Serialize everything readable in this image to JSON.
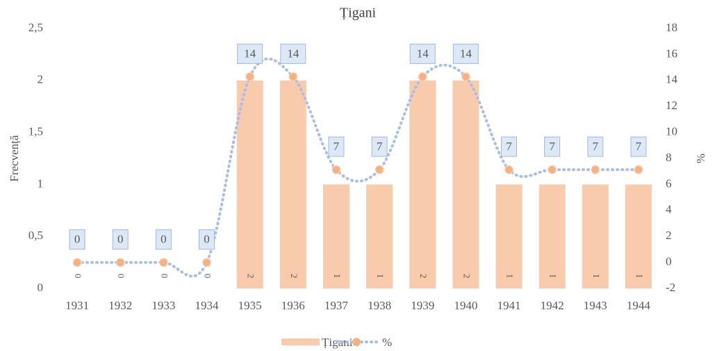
{
  "chart_data": {
    "type": "bar-line",
    "title": "Țigani",
    "categories": [
      "1931",
      "1932",
      "1933",
      "1934",
      "1935",
      "1936",
      "1937",
      "1938",
      "1939",
      "1940",
      "1941",
      "1942",
      "1943",
      "1944"
    ],
    "series": [
      {
        "name": "Țigani",
        "type": "bar",
        "color": "#f8cbad",
        "axis": "y",
        "values": [
          0,
          0,
          0,
          0,
          2,
          2,
          1,
          1,
          2,
          2,
          1,
          1,
          1,
          1
        ]
      },
      {
        "name": "%",
        "type": "line",
        "color": "#a9bee3",
        "marker_color": "#f4b183",
        "axis": "y2",
        "values": [
          0,
          0,
          0,
          0,
          14.29,
          14.29,
          7.14,
          7.14,
          14.29,
          14.29,
          7.14,
          7.14,
          7.14,
          7.14
        ],
        "value_labels": [
          "0",
          "0",
          "0",
          "0",
          "14",
          "14",
          "7",
          "7",
          "14",
          "14",
          "7",
          "7",
          "7",
          "7"
        ]
      }
    ],
    "ylabel": "Frecvență",
    "y2label": "%",
    "ylim": [
      0,
      2.5
    ],
    "yticks": [
      0,
      {
        "value": 0.5,
        "label": "0,5"
      },
      1,
      {
        "value": 1.5,
        "label": "1,5"
      },
      2,
      {
        "value": 2.5,
        "label": "2,5"
      }
    ],
    "y2lim": [
      -2,
      18
    ],
    "y2ticks": [
      -2,
      0,
      2,
      4,
      6,
      8,
      10,
      12,
      14,
      16,
      18
    ],
    "grid": false,
    "legend": "bottom"
  }
}
